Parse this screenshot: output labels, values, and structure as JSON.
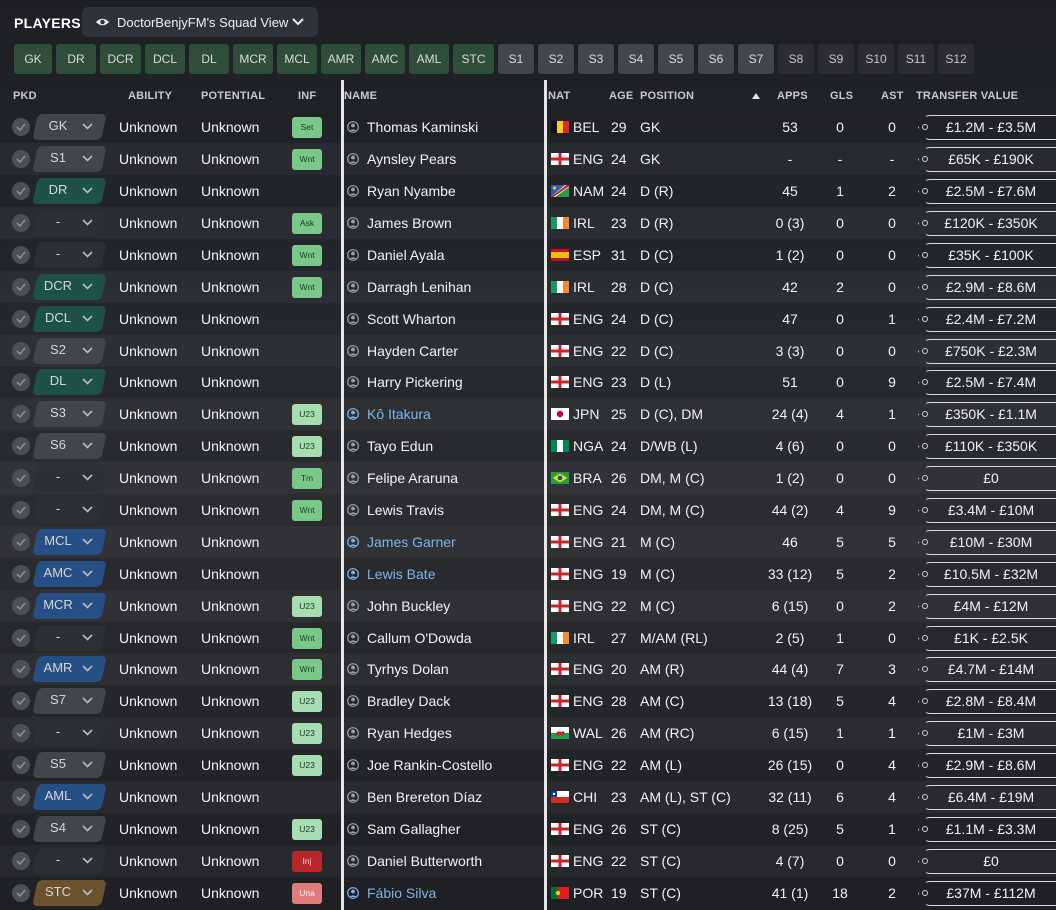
{
  "header": {
    "title": "PLAYERS",
    "view_name": "DoctorBenjyFM's Squad View"
  },
  "tabs": [
    "GK",
    "DR",
    "DCR",
    "DCL",
    "DL",
    "MCR",
    "MCL",
    "AMR",
    "AMC",
    "AML",
    "STC",
    "S1",
    "S2",
    "S3",
    "S4",
    "S5",
    "S6",
    "S7",
    "S8",
    "S9",
    "S10",
    "S11",
    "S12"
  ],
  "columns": {
    "pkd": "PKD",
    "ability": "ABILITY",
    "potential": "POTENTIAL",
    "inf": "INF",
    "name": "NAME",
    "nat": "NAT",
    "age": "AGE",
    "position": "POSITION",
    "apps": "APPS",
    "gls": "GLS",
    "ast": "AST",
    "transfer_value": "TRANSFER VALUE"
  },
  "colors": {
    "tab_green": "#2f4e3a",
    "tab_slot": "#41464c",
    "chip_gk_slot": "#41464c",
    "chip_def": "#1e5249",
    "chip_mid": "#264f86",
    "chip_att": "#6c5330",
    "link": "#7eb4ea"
  },
  "players": [
    {
      "pkd": "GK",
      "pkd_color": "slot",
      "ability": "Unknown",
      "potential": "Unknown",
      "inf": "Set",
      "inf_type": "green",
      "name": "Thomas Kaminski",
      "link": false,
      "flag": "BEL",
      "nat": "BEL",
      "age": "29",
      "position": "GK",
      "apps": "53",
      "gls": "0",
      "ast": "0",
      "value": "£1.2M - £3.5M"
    },
    {
      "pkd": "S1",
      "pkd_color": "slot",
      "ability": "Unknown",
      "potential": "Unknown",
      "inf": "Wnt",
      "inf_type": "green",
      "name": "Aynsley Pears",
      "link": false,
      "flag": "ENG",
      "nat": "ENG",
      "age": "24",
      "position": "GK",
      "apps": "-",
      "gls": "-",
      "ast": "-",
      "value": "£65K - £190K"
    },
    {
      "pkd": "DR",
      "pkd_color": "def",
      "ability": "Unknown",
      "potential": "Unknown",
      "inf": "",
      "inf_type": "",
      "name": "Ryan Nyambe",
      "link": false,
      "flag": "NAM",
      "nat": "NAM",
      "age": "24",
      "position": "D (R)",
      "apps": "45",
      "gls": "1",
      "ast": "2",
      "value": "£2.5M - £7.6M"
    },
    {
      "pkd": "-",
      "pkd_color": "none",
      "ability": "Unknown",
      "potential": "Unknown",
      "inf": "Ask",
      "inf_type": "green",
      "name": "James Brown",
      "link": false,
      "flag": "IRL",
      "nat": "IRL",
      "age": "23",
      "position": "D (R)",
      "apps": "0 (3)",
      "gls": "0",
      "ast": "0",
      "value": "£120K - £350K"
    },
    {
      "pkd": "-",
      "pkd_color": "none",
      "ability": "Unknown",
      "potential": "Unknown",
      "inf": "Wnt",
      "inf_type": "green",
      "name": "Daniel Ayala",
      "link": false,
      "flag": "ESP",
      "nat": "ESP",
      "age": "31",
      "position": "D (C)",
      "apps": "1 (2)",
      "gls": "0",
      "ast": "0",
      "value": "£35K - £100K"
    },
    {
      "pkd": "DCR",
      "pkd_color": "def",
      "ability": "Unknown",
      "potential": "Unknown",
      "inf": "Wnt",
      "inf_type": "green",
      "name": "Darragh Lenihan",
      "link": false,
      "flag": "IRL",
      "nat": "IRL",
      "age": "28",
      "position": "D (C)",
      "apps": "42",
      "gls": "2",
      "ast": "0",
      "value": "£2.9M - £8.6M"
    },
    {
      "pkd": "DCL",
      "pkd_color": "def",
      "ability": "Unknown",
      "potential": "Unknown",
      "inf": "",
      "inf_type": "",
      "name": "Scott Wharton",
      "link": false,
      "flag": "ENG",
      "nat": "ENG",
      "age": "24",
      "position": "D (C)",
      "apps": "47",
      "gls": "0",
      "ast": "1",
      "value": "£2.4M - £7.2M"
    },
    {
      "pkd": "S2",
      "pkd_color": "slot",
      "ability": "Unknown",
      "potential": "Unknown",
      "inf": "",
      "inf_type": "",
      "name": "Hayden Carter",
      "link": false,
      "flag": "ENG",
      "nat": "ENG",
      "age": "22",
      "position": "D (C)",
      "apps": "3 (3)",
      "gls": "0",
      "ast": "0",
      "value": "£750K - £2.3M"
    },
    {
      "pkd": "DL",
      "pkd_color": "def",
      "ability": "Unknown",
      "potential": "Unknown",
      "inf": "",
      "inf_type": "",
      "name": "Harry Pickering",
      "link": false,
      "flag": "ENG",
      "nat": "ENG",
      "age": "23",
      "position": "D (L)",
      "apps": "51",
      "gls": "0",
      "ast": "9",
      "value": "£2.5M - £7.4M"
    },
    {
      "pkd": "S3",
      "pkd_color": "slot",
      "ability": "Unknown",
      "potential": "Unknown",
      "inf": "U23",
      "inf_type": "u23",
      "name": "Kô Itakura",
      "link": true,
      "flag": "JPN",
      "nat": "JPN",
      "age": "25",
      "position": "D (C), DM",
      "apps": "24 (4)",
      "gls": "4",
      "ast": "1",
      "value": "£350K - £1.1M"
    },
    {
      "pkd": "S6",
      "pkd_color": "slot",
      "ability": "Unknown",
      "potential": "Unknown",
      "inf": "U23",
      "inf_type": "u23",
      "name": "Tayo Edun",
      "link": false,
      "flag": "NGA",
      "nat": "NGA",
      "age": "24",
      "position": "D/WB (L)",
      "apps": "4 (6)",
      "gls": "0",
      "ast": "0",
      "value": "£110K - £350K"
    },
    {
      "pkd": "-",
      "pkd_color": "none",
      "ability": "Unknown",
      "potential": "Unknown",
      "inf": "Tm",
      "inf_type": "green",
      "name": "Felipe Araruna",
      "link": false,
      "flag": "BRA",
      "nat": "BRA",
      "age": "26",
      "position": "DM, M (C)",
      "apps": "1 (2)",
      "gls": "0",
      "ast": "0",
      "value": "£0"
    },
    {
      "pkd": "-",
      "pkd_color": "none",
      "ability": "Unknown",
      "potential": "Unknown",
      "inf": "Wnt",
      "inf_type": "green",
      "name": "Lewis Travis",
      "link": false,
      "flag": "ENG",
      "nat": "ENG",
      "age": "24",
      "position": "DM, M (C)",
      "apps": "44 (2)",
      "gls": "4",
      "ast": "9",
      "value": "£3.4M - £10M"
    },
    {
      "pkd": "MCL",
      "pkd_color": "mid",
      "ability": "Unknown",
      "potential": "Unknown",
      "inf": "",
      "inf_type": "",
      "name": "James Garner",
      "link": true,
      "flag": "ENG",
      "nat": "ENG",
      "age": "21",
      "position": "M (C)",
      "apps": "46",
      "gls": "5",
      "ast": "5",
      "value": "£10M - £30M"
    },
    {
      "pkd": "AMC",
      "pkd_color": "mid",
      "ability": "Unknown",
      "potential": "Unknown",
      "inf": "",
      "inf_type": "",
      "name": "Lewis Bate",
      "link": true,
      "flag": "ENG",
      "nat": "ENG",
      "age": "19",
      "position": "M (C)",
      "apps": "33 (12)",
      "gls": "5",
      "ast": "2",
      "value": "£10.5M - £32M"
    },
    {
      "pkd": "MCR",
      "pkd_color": "mid",
      "ability": "Unknown",
      "potential": "Unknown",
      "inf": "U23",
      "inf_type": "u23",
      "name": "John Buckley",
      "link": false,
      "flag": "ENG",
      "nat": "ENG",
      "age": "22",
      "position": "M (C)",
      "apps": "6 (15)",
      "gls": "0",
      "ast": "2",
      "value": "£4M - £12M"
    },
    {
      "pkd": "-",
      "pkd_color": "none",
      "ability": "Unknown",
      "potential": "Unknown",
      "inf": "Wnt",
      "inf_type": "green",
      "name": "Callum O'Dowda",
      "link": false,
      "flag": "IRL",
      "nat": "IRL",
      "age": "27",
      "position": "M/AM (RL)",
      "apps": "2 (5)",
      "gls": "1",
      "ast": "0",
      "value": "£1K - £2.5K"
    },
    {
      "pkd": "AMR",
      "pkd_color": "mid",
      "ability": "Unknown",
      "potential": "Unknown",
      "inf": "Wnt",
      "inf_type": "green",
      "name": "Tyrhys Dolan",
      "link": false,
      "flag": "ENG",
      "nat": "ENG",
      "age": "20",
      "position": "AM (R)",
      "apps": "44 (4)",
      "gls": "7",
      "ast": "3",
      "value": "£4.7M - £14M"
    },
    {
      "pkd": "S7",
      "pkd_color": "slot",
      "ability": "Unknown",
      "potential": "Unknown",
      "inf": "U23",
      "inf_type": "u23",
      "name": "Bradley Dack",
      "link": false,
      "flag": "ENG",
      "nat": "ENG",
      "age": "28",
      "position": "AM (C)",
      "apps": "13 (18)",
      "gls": "5",
      "ast": "4",
      "value": "£2.8M - £8.4M"
    },
    {
      "pkd": "-",
      "pkd_color": "none",
      "ability": "Unknown",
      "potential": "Unknown",
      "inf": "U23",
      "inf_type": "u23",
      "name": "Ryan Hedges",
      "link": false,
      "flag": "WAL",
      "nat": "WAL",
      "age": "26",
      "position": "AM (RC)",
      "apps": "6 (15)",
      "gls": "1",
      "ast": "1",
      "value": "£1M - £3M"
    },
    {
      "pkd": "S5",
      "pkd_color": "slot",
      "ability": "Unknown",
      "potential": "Unknown",
      "inf": "U23",
      "inf_type": "u23",
      "name": "Joe Rankin-Costello",
      "link": false,
      "flag": "ENG",
      "nat": "ENG",
      "age": "22",
      "position": "AM (L)",
      "apps": "26 (15)",
      "gls": "0",
      "ast": "4",
      "value": "£2.9M - £8.6M"
    },
    {
      "pkd": "AML",
      "pkd_color": "mid",
      "ability": "Unknown",
      "potential": "Unknown",
      "inf": "",
      "inf_type": "",
      "name": "Ben Brereton Díaz",
      "link": false,
      "flag": "CHI",
      "nat": "CHI",
      "age": "23",
      "position": "AM (L), ST (C)",
      "apps": "32 (11)",
      "gls": "6",
      "ast": "4",
      "value": "£6.4M - £19M"
    },
    {
      "pkd": "S4",
      "pkd_color": "slot",
      "ability": "Unknown",
      "potential": "Unknown",
      "inf": "U23",
      "inf_type": "u23",
      "name": "Sam Gallagher",
      "link": false,
      "flag": "ENG",
      "nat": "ENG",
      "age": "26",
      "position": "ST (C)",
      "apps": "8 (25)",
      "gls": "5",
      "ast": "1",
      "value": "£1.1M - £3.3M"
    },
    {
      "pkd": "-",
      "pkd_color": "none",
      "ability": "Unknown",
      "potential": "Unknown",
      "inf": "Inj",
      "inf_type": "inj",
      "name": "Daniel Butterworth",
      "link": false,
      "flag": "ENG",
      "nat": "ENG",
      "age": "22",
      "position": "ST (C)",
      "apps": "4 (7)",
      "gls": "0",
      "ast": "0",
      "value": "£0"
    },
    {
      "pkd": "STC",
      "pkd_color": "att",
      "ability": "Unknown",
      "potential": "Unknown",
      "inf": "Una",
      "inf_type": "una",
      "name": "Fábio Silva",
      "link": true,
      "flag": "POR",
      "nat": "POR",
      "age": "19",
      "position": "ST (C)",
      "apps": "41 (1)",
      "gls": "18",
      "ast": "2",
      "value": "£37M - £112M"
    }
  ]
}
